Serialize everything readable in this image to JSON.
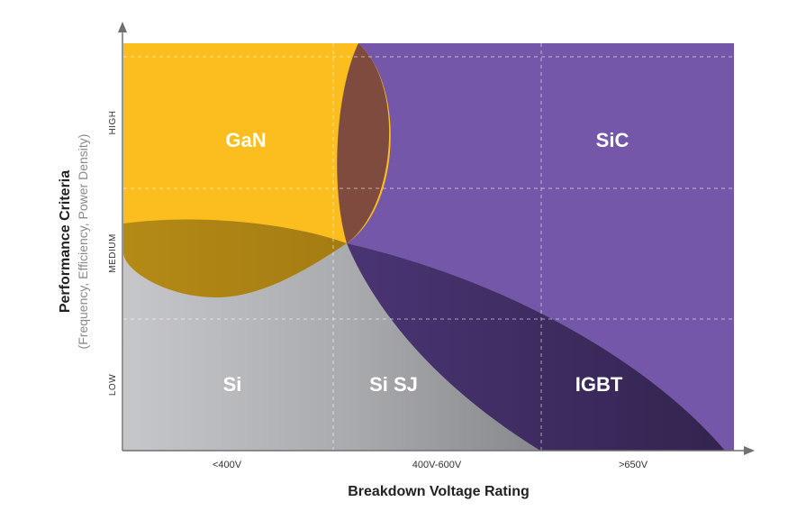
{
  "regions": {
    "gan": "GaN",
    "sic": "SiC",
    "si": "Si",
    "si_sj": "Si SJ",
    "igbt": "IGBT"
  },
  "x_axis": {
    "title": "Breakdown Voltage Rating",
    "ticks": [
      "<400V",
      "400V-600V",
      ">650V"
    ]
  },
  "y_axis": {
    "title": "Performance Criteria",
    "subtitle": "(Frequency, Efficiency, Power Density)",
    "levels": [
      "LOW",
      "MEDIUM",
      "HIGH"
    ]
  },
  "colors": {
    "gan": "#FBBE1E",
    "sic": "#7457A8",
    "si_light": "#C6C7CA",
    "si_dark": "#8D8E92",
    "igbt": "#3A2A5C",
    "overlap_gan_sic": "#7E4B3E",
    "overlap_gan_si": "#AE8314"
  }
}
